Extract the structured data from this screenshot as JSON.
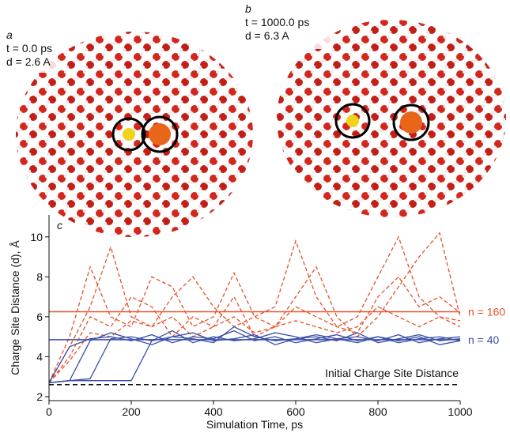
{
  "panels": {
    "a": {
      "label": "a",
      "time": "t = 0.0 ps",
      "distance": "d = 2.6 A"
    },
    "b": {
      "label": "b",
      "time": "t = 1000.0 ps",
      "distance": "d = 6.3 A"
    }
  },
  "chart_data": {
    "type": "line",
    "panel_label": "c",
    "xlabel": "Simulation Time, ps",
    "ylabel": "Charge Site Distance (d), Å",
    "x": [
      0,
      50,
      100,
      150,
      200,
      250,
      300,
      350,
      400,
      450,
      500,
      550,
      600,
      650,
      700,
      750,
      800,
      850,
      900,
      950,
      1000
    ],
    "xlim": [
      0,
      1000
    ],
    "xticks": [
      0,
      200,
      400,
      600,
      800,
      1000
    ],
    "ylim": [
      1.8,
      11.1
    ],
    "yticks": [
      2,
      4,
      6,
      8,
      10
    ],
    "series": [
      {
        "color": "#e8502a",
        "dashed": true,
        "values": [
          2.7,
          4.5,
          6.5,
          9.5,
          6,
          5.5,
          7,
          8,
          6.5,
          5.5,
          6,
          6.5,
          9.8,
          7,
          5.5,
          6,
          8,
          10,
          7,
          6,
          5.8
        ]
      },
      {
        "color": "#e8502a",
        "dashed": true,
        "values": [
          2.7,
          4,
          6,
          5.5,
          7,
          6.5,
          5,
          6,
          5.5,
          7,
          5,
          5.5,
          7,
          8.5,
          6,
          5,
          6,
          7.5,
          9,
          10.2,
          6
        ]
      },
      {
        "color": "#e8502a",
        "dashed": true,
        "values": [
          2.7,
          5,
          8.5,
          6,
          5.5,
          8,
          7.5,
          5.5,
          6,
          8.2,
          6,
          5.5,
          6.5,
          6,
          5.5,
          5.2,
          7,
          8,
          6.5,
          7,
          6.2
        ]
      },
      {
        "color": "#e8502a",
        "dashed": true,
        "values": [
          2.7,
          3.8,
          5.2,
          5,
          5.8,
          5.5,
          6,
          5,
          5.5,
          6,
          5.2,
          5.5,
          5.8,
          5.5,
          5.2,
          5.5,
          6.5,
          6,
          5.5,
          6,
          5.5
        ]
      },
      {
        "color": "#3a4fa8",
        "dashed": false,
        "values": [
          2.7,
          4.5,
          4.9,
          5,
          4.8,
          5.1,
          4.7,
          5,
          4.9,
          5.3,
          4.8,
          5,
          4.7,
          4.9,
          5.1,
          4.8,
          5,
          4.7,
          4.9,
          5,
          4.8
        ]
      },
      {
        "color": "#3a4fa8",
        "dashed": false,
        "values": [
          2.7,
          2.8,
          4.8,
          5.2,
          4.9,
          4.6,
          5,
          5.2,
          4.8,
          4.9,
          5.1,
          4.6,
          4.9,
          5,
          4.8,
          5.2,
          4.7,
          4.9,
          5.1,
          4.8,
          4.9
        ]
      },
      {
        "color": "#3a4fa8",
        "dashed": false,
        "values": [
          2.7,
          2.8,
          2.9,
          4.9,
          5,
          4.8,
          5.3,
          4.7,
          5,
          4.8,
          4.9,
          5.2,
          5,
          4.7,
          4.9,
          5,
          4.8,
          5.1,
          4.7,
          4.9,
          5
        ]
      },
      {
        "color": "#3a4fa8",
        "dashed": false,
        "values": [
          2.7,
          2.8,
          2.8,
          2.8,
          2.8,
          4.8,
          5,
          4.9,
          4.7,
          5.5,
          5,
          4.8,
          4.9,
          5.1,
          4.9,
          4.7,
          5,
          4.8,
          5,
          4.6,
          4.8
        ]
      }
    ],
    "hlines": [
      {
        "value": 6.25,
        "label": "n = 160",
        "color": "#e8502a",
        "dashed": false
      },
      {
        "value": 4.85,
        "label": "n = 40",
        "color": "#3a4fa8",
        "dashed": false
      },
      {
        "value": 2.6,
        "label": "Initial Charge Site Distance",
        "color": "#111111",
        "dashed": true
      }
    ]
  }
}
